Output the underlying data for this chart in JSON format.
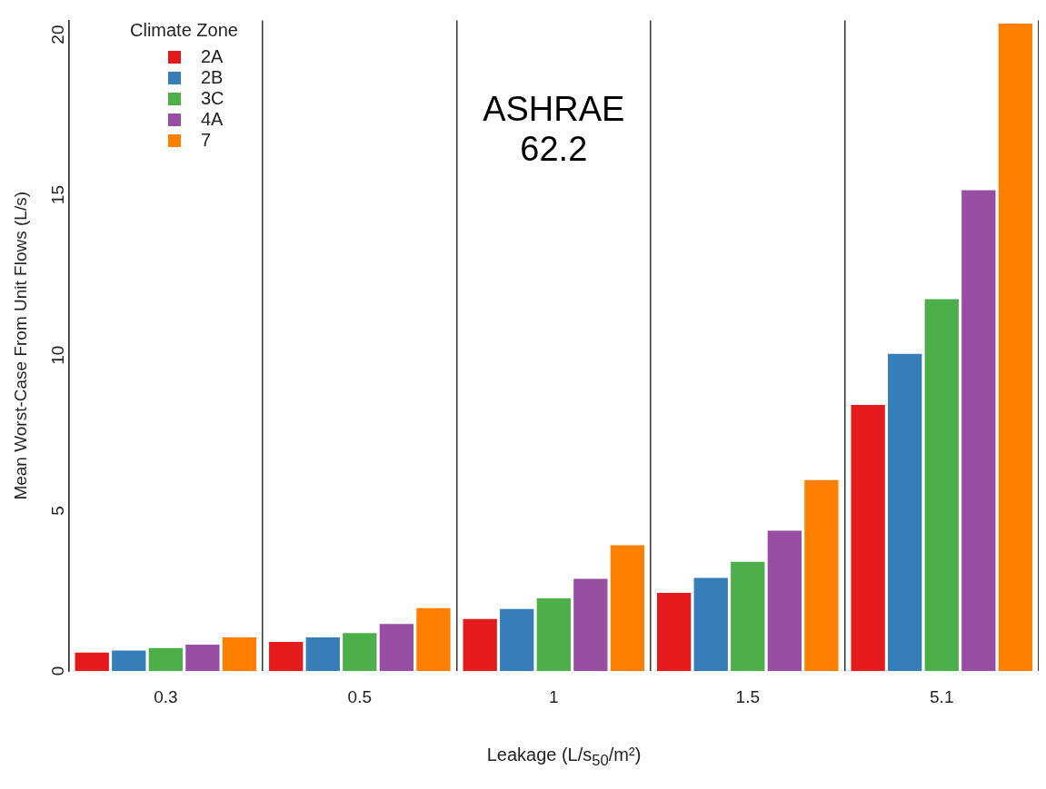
{
  "chart_data": {
    "type": "bar",
    "xlabel": "Leakage (L/s$_{50}$/m²)",
    "ylabel": "Mean Worst-Case From Unit Flows (L/s)",
    "legend_title": "Climate Zone",
    "legend": "top left",
    "grid": "x",
    "categories": [
      "0.3",
      "0.5",
      "1",
      "1.5",
      "5.1"
    ],
    "series": [
      {
        "name": "2A",
        "color": "#e41a1c",
        "values": [
          0.58,
          0.91,
          1.63,
          2.44,
          8.3
        ]
      },
      {
        "name": "2B",
        "color": "#377eb8",
        "values": [
          0.64,
          1.05,
          1.94,
          2.91,
          9.9
        ]
      },
      {
        "name": "3C",
        "color": "#4daf4a",
        "values": [
          0.72,
          1.19,
          2.27,
          3.41,
          11.6
        ]
      },
      {
        "name": "4A",
        "color": "#984ea3",
        "values": [
          0.83,
          1.47,
          2.88,
          4.38,
          15.0
        ]
      },
      {
        "name": "7",
        "color": "#ff7f00",
        "values": [
          1.05,
          1.97,
          3.93,
          5.96,
          20.2
        ]
      }
    ],
    "ylim": [
      0,
      20.3
    ],
    "yticks": [
      0,
      5,
      10,
      15,
      20
    ],
    "annotations": [
      "ASHRAE 62.2"
    ]
  }
}
